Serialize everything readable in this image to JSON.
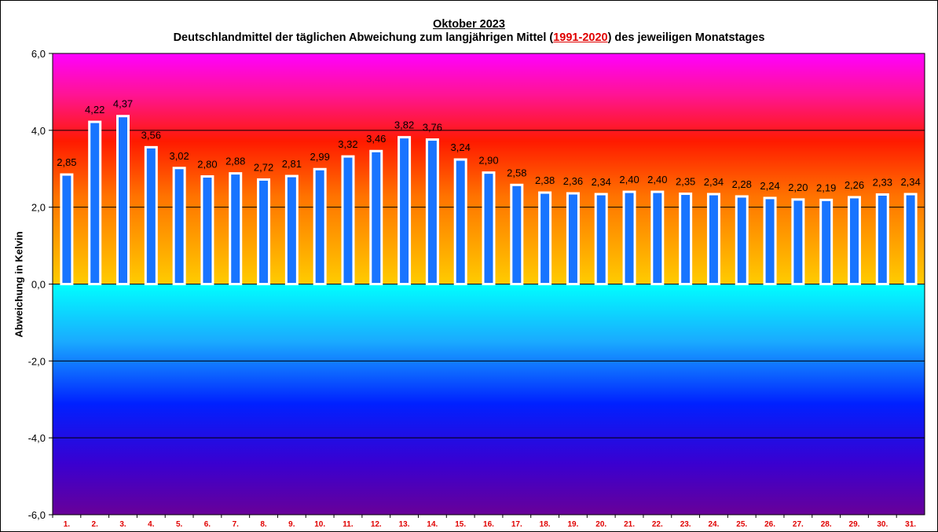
{
  "chart_data": {
    "type": "bar",
    "title": "Oktober 2023",
    "subtitle_parts": [
      "Deutschlandmittel der täglichen Abweichung zum langjährigen Mittel (",
      "1991-2020",
      ") des jeweiligen Monatstages"
    ],
    "ylabel": "Abweichung  in Kelvin",
    "xlabel": "",
    "ylim": [
      -6,
      6
    ],
    "yticks": [
      6,
      4,
      2,
      0,
      -2,
      -4,
      -6
    ],
    "ytick_labels": [
      "6,0",
      "4,0",
      "2,0",
      "0,0",
      "-2,0",
      "-4,0",
      "-6,0"
    ],
    "categories": [
      "1.",
      "2.",
      "3.",
      "4.",
      "5.",
      "6.",
      "7.",
      "8.",
      "9.",
      "10.",
      "11.",
      "12.",
      "13.",
      "14.",
      "15.",
      "16.",
      "17.",
      "18.",
      "19.",
      "20.",
      "21.",
      "22.",
      "23.",
      "24.",
      "25.",
      "26.",
      "27.",
      "28.",
      "29.",
      "30.",
      "31."
    ],
    "values": [
      2.85,
      4.22,
      4.37,
      3.56,
      3.02,
      2.8,
      2.88,
      2.72,
      2.81,
      2.99,
      3.32,
      3.46,
      3.82,
      3.76,
      3.24,
      2.9,
      2.58,
      2.38,
      2.36,
      2.34,
      2.4,
      2.4,
      2.35,
      2.34,
      2.28,
      2.24,
      2.2,
      2.19,
      2.26,
      2.33,
      2.34
    ],
    "value_labels": [
      "2,85",
      "4,22",
      "4,37",
      "3,56",
      "3,02",
      "2,80",
      "2,88",
      "2,72",
      "2,81",
      "2,99",
      "3,32",
      "3,46",
      "3,82",
      "3,76",
      "3,24",
      "2,90",
      "2,58",
      "2,38",
      "2,36",
      "2,34",
      "2,40",
      "2,40",
      "2,35",
      "2,34",
      "2,28",
      "2,24",
      "2,20",
      "2,19",
      "2,26",
      "2,33",
      "2,34"
    ],
    "grid": true,
    "legend": "none",
    "colors": {
      "bar_fill": "#1874ff",
      "bar_border": "#ffffff",
      "category_label": "#e00000",
      "period_text": "#e00000"
    }
  }
}
